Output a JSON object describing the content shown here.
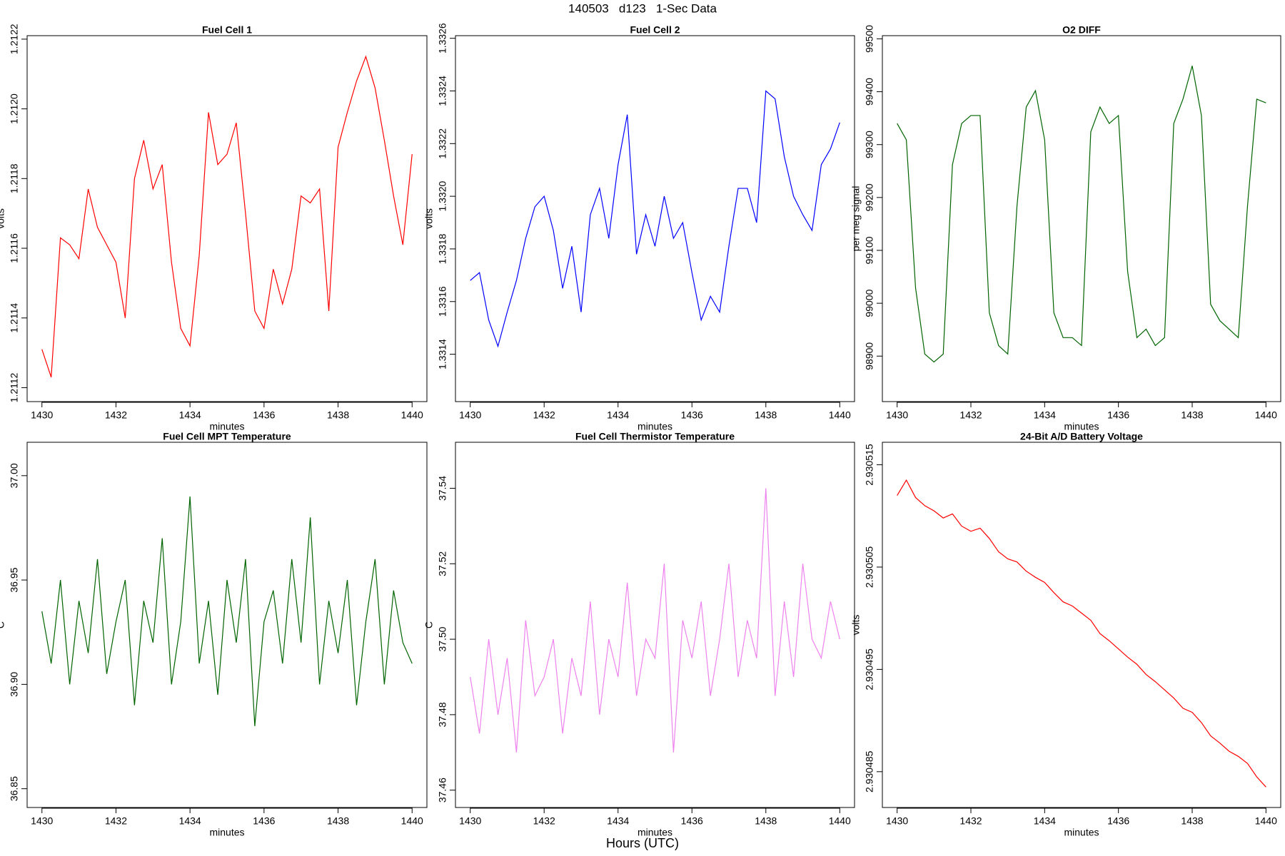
{
  "title": "140503   d123   1-Sec Data",
  "xlabel": "Hours (UTC)",
  "chart_data": [
    {
      "type": "line",
      "title": "Fuel Cell 1",
      "xlabel": "minutes",
      "ylabel": "volts",
      "color": "#ff0000",
      "x": [
        1430,
        1430.25,
        1430.5,
        1430.75,
        1431,
        1431.25,
        1431.5,
        1431.75,
        1432,
        1432.25,
        1432.5,
        1432.75,
        1433,
        1433.25,
        1433.5,
        1433.75,
        1434,
        1434.25,
        1434.5,
        1434.75,
        1435,
        1435.25,
        1435.5,
        1435.75,
        1436,
        1436.25,
        1436.5,
        1436.75,
        1437,
        1437.25,
        1437.5,
        1437.75,
        1438,
        1438.25,
        1438.5,
        1438.75,
        1439,
        1439.25,
        1439.5,
        1439.75,
        1440
      ],
      "values": [
        1.21131,
        1.21123,
        1.21163,
        1.21161,
        1.21157,
        1.21177,
        1.21166,
        1.21161,
        1.21156,
        1.2114,
        1.2118,
        1.21191,
        1.21177,
        1.21184,
        1.21156,
        1.21137,
        1.21132,
        1.21158,
        1.21199,
        1.21184,
        1.21187,
        1.21196,
        1.2117,
        1.21142,
        1.21137,
        1.21154,
        1.21144,
        1.21154,
        1.21175,
        1.21173,
        1.21177,
        1.21142,
        1.21189,
        1.21199,
        1.21208,
        1.21215,
        1.21206,
        1.21191,
        1.21175,
        1.21161,
        1.21187
      ],
      "xlim": [
        1429.6,
        1440.4
      ],
      "xticks": [
        1430,
        1432,
        1434,
        1436,
        1438,
        1440
      ],
      "ylim": [
        1.21116,
        1.21221
      ],
      "yticks": [
        1.2112,
        1.2114,
        1.2116,
        1.2118,
        {
          "value": 1.212,
          "label": "1.2120"
        },
        1.2122
      ]
    },
    {
      "type": "line",
      "title": "Fuel Cell 2",
      "xlabel": "minutes",
      "ylabel": "volts",
      "color": "#0000ff",
      "x": [
        1430,
        1430.25,
        1430.5,
        1430.75,
        1431,
        1431.25,
        1431.5,
        1431.75,
        1432,
        1432.25,
        1432.5,
        1432.75,
        1433,
        1433.25,
        1433.5,
        1433.75,
        1434,
        1434.25,
        1434.5,
        1434.75,
        1435,
        1435.25,
        1435.5,
        1435.75,
        1436,
        1436.25,
        1436.5,
        1436.75,
        1437,
        1437.25,
        1437.5,
        1437.75,
        1438,
        1438.25,
        1438.5,
        1438.75,
        1439,
        1439.25,
        1439.5,
        1439.75,
        1440
      ],
      "values": [
        1.33168,
        1.33171,
        1.33153,
        1.33143,
        1.33156,
        1.33168,
        1.33184,
        1.33196,
        1.332,
        1.33187,
        1.33165,
        1.33181,
        1.33156,
        1.33193,
        1.33203,
        1.33184,
        1.33212,
        1.33231,
        1.33178,
        1.33193,
        1.33181,
        1.332,
        1.33184,
        1.3319,
        1.33171,
        1.33153,
        1.33162,
        1.33156,
        1.33181,
        1.33203,
        1.33203,
        1.3319,
        1.3324,
        1.33237,
        1.33215,
        1.332,
        1.33193,
        1.33187,
        1.33212,
        1.33218,
        1.33228
      ],
      "xlim": [
        1429.6,
        1440.4
      ],
      "xticks": [
        1430,
        1432,
        1434,
        1436,
        1438,
        1440
      ],
      "ylim": [
        1.33122,
        1.33261
      ],
      "yticks": [
        1.3314,
        1.3316,
        1.3318,
        {
          "value": 1.332,
          "label": "1.3320"
        },
        1.3322,
        1.3324,
        1.3326
      ]
    },
    {
      "type": "line",
      "title": "O2 DIFF",
      "xlabel": "minutes",
      "ylabel": "per meg signal",
      "color": "#006400",
      "x": [
        1430,
        1430.25,
        1430.5,
        1430.75,
        1431,
        1431.25,
        1431.5,
        1431.75,
        1432,
        1432.25,
        1432.5,
        1432.75,
        1433,
        1433.25,
        1433.5,
        1433.75,
        1434,
        1434.25,
        1434.5,
        1434.75,
        1435,
        1435.25,
        1435.5,
        1435.75,
        1436,
        1436.25,
        1436.5,
        1436.75,
        1437,
        1437.25,
        1437.5,
        1437.75,
        1438,
        1438.25,
        1438.5,
        1438.75,
        1439,
        1439.25,
        1439.5,
        1439.75,
        1440
      ],
      "values": [
        99340,
        99309,
        99029,
        98904,
        98889,
        98904,
        99262,
        99340,
        99355,
        99355,
        98982,
        98920,
        98904,
        99184,
        99371,
        99402,
        99309,
        98982,
        98935,
        98935,
        98920,
        99324,
        99371,
        99340,
        99355,
        99060,
        98935,
        98951,
        98920,
        98935,
        99340,
        99386,
        99449,
        99355,
        98998,
        98967,
        98951,
        98935,
        99184,
        99386,
        99379
      ],
      "xlim": [
        1429.6,
        1440.4
      ],
      "xticks": [
        1430,
        1432,
        1434,
        1436,
        1438,
        1440
      ],
      "ylim": [
        98814,
        99506
      ],
      "yticks": [
        98900,
        99000,
        99100,
        99200,
        99300,
        99400,
        99500
      ]
    },
    {
      "type": "line",
      "title": "Fuel Cell MPT Temperature",
      "xlabel": "minutes",
      "ylabel": "C",
      "color": "#006400",
      "x": [
        1430,
        1430.25,
        1430.5,
        1430.75,
        1431,
        1431.25,
        1431.5,
        1431.75,
        1432,
        1432.25,
        1432.5,
        1432.75,
        1433,
        1433.25,
        1433.5,
        1433.75,
        1434,
        1434.25,
        1434.5,
        1434.75,
        1435,
        1435.25,
        1435.5,
        1435.75,
        1436,
        1436.25,
        1436.5,
        1436.75,
        1437,
        1437.25,
        1437.5,
        1437.75,
        1438,
        1438.25,
        1438.5,
        1438.75,
        1439,
        1439.25,
        1439.5,
        1439.75,
        1440
      ],
      "values": [
        36.935,
        36.91,
        36.95,
        36.9,
        36.94,
        36.915,
        36.96,
        36.905,
        36.93,
        36.95,
        36.89,
        36.94,
        36.92,
        36.97,
        36.9,
        36.93,
        36.99,
        36.91,
        36.94,
        36.895,
        36.95,
        36.92,
        36.96,
        36.88,
        36.93,
        36.945,
        36.91,
        36.96,
        36.92,
        36.98,
        36.9,
        36.94,
        36.915,
        36.95,
        36.89,
        36.93,
        36.96,
        36.9,
        36.945,
        36.92,
        36.91
      ],
      "xlim": [
        1429.6,
        1440.4
      ],
      "xticks": [
        1430,
        1432,
        1434,
        1436,
        1438,
        1440
      ],
      "ylim": [
        36.841,
        37.016
      ],
      "yticks": [
        36.85,
        {
          "value": 36.9,
          "label": "36.90"
        },
        36.95,
        {
          "value": 37,
          "label": "37.00"
        }
      ]
    },
    {
      "type": "line",
      "title": "Fuel Cell Thermistor Temperature",
      "xlabel": "minutes",
      "ylabel": "C",
      "color": "#ee82ee",
      "x": [
        1430,
        1430.25,
        1430.5,
        1430.75,
        1431,
        1431.25,
        1431.5,
        1431.75,
        1432,
        1432.25,
        1432.5,
        1432.75,
        1433,
        1433.25,
        1433.5,
        1433.75,
        1434,
        1434.25,
        1434.5,
        1434.75,
        1435,
        1435.25,
        1435.5,
        1435.75,
        1436,
        1436.25,
        1436.5,
        1436.75,
        1437,
        1437.25,
        1437.5,
        1437.75,
        1438,
        1438.25,
        1438.5,
        1438.75,
        1439,
        1439.25,
        1439.5,
        1439.75,
        1440
      ],
      "values": [
        37.49,
        37.475,
        37.5,
        37.48,
        37.495,
        37.47,
        37.505,
        37.485,
        37.49,
        37.5,
        37.475,
        37.495,
        37.485,
        37.51,
        37.48,
        37.5,
        37.49,
        37.515,
        37.485,
        37.5,
        37.495,
        37.52,
        37.47,
        37.505,
        37.495,
        37.51,
        37.485,
        37.5,
        37.52,
        37.49,
        37.505,
        37.495,
        37.54,
        37.485,
        37.51,
        37.49,
        37.52,
        37.5,
        37.495,
        37.51,
        37.5
      ],
      "xlim": [
        1429.6,
        1440.4
      ],
      "xticks": [
        1430,
        1432,
        1434,
        1436,
        1438,
        1440
      ],
      "ylim": [
        37.4554,
        37.5522
      ],
      "yticks": [
        37.46,
        37.48,
        {
          "value": 37.5,
          "label": "37.50"
        },
        37.52,
        37.54
      ]
    },
    {
      "type": "line",
      "title": "24-Bit A/D Battery Voltage",
      "xlabel": "minutes",
      "ylabel": "volts",
      "color": "#ff0000",
      "x": [
        1430,
        1430.25,
        1430.5,
        1430.75,
        1431,
        1431.25,
        1431.5,
        1431.75,
        1432,
        1432.25,
        1432.5,
        1432.75,
        1433,
        1433.25,
        1433.5,
        1433.75,
        1434,
        1434.25,
        1434.5,
        1434.75,
        1435,
        1435.25,
        1435.5,
        1435.75,
        1436,
        1436.25,
        1436.5,
        1436.75,
        1437,
        1437.25,
        1437.5,
        1437.75,
        1438,
        1438.25,
        1438.5,
        1438.75,
        1439,
        1439.25,
        1439.5,
        1439.75,
        1440
      ],
      "values": [
        2.930512,
        2.9305135,
        2.9305118,
        2.930511,
        2.9305105,
        2.9305098,
        2.9305102,
        2.930509,
        2.9305085,
        2.9305088,
        2.9305078,
        2.9305065,
        2.9305058,
        2.9305055,
        2.9305046,
        2.930504,
        2.9305035,
        2.9305025,
        2.9305016,
        2.9305012,
        2.9305005,
        2.9304998,
        2.9304985,
        2.9304978,
        2.930497,
        2.9304962,
        2.9304955,
        2.9304945,
        2.9304938,
        2.930493,
        2.9304922,
        2.9304912,
        2.9304908,
        2.9304898,
        2.9304885,
        2.9304878,
        2.930487,
        2.9304865,
        2.9304858,
        2.9304845,
        2.9304835
      ],
      "xlim": [
        1429.6,
        1440.4
      ],
      "xticks": [
        1430,
        1432,
        1434,
        1436,
        1438,
        1440
      ],
      "ylim": [
        2.9304815,
        2.9305172
      ],
      "yticks": [
        2.930485,
        2.930495,
        2.930505,
        2.930515
      ]
    }
  ]
}
